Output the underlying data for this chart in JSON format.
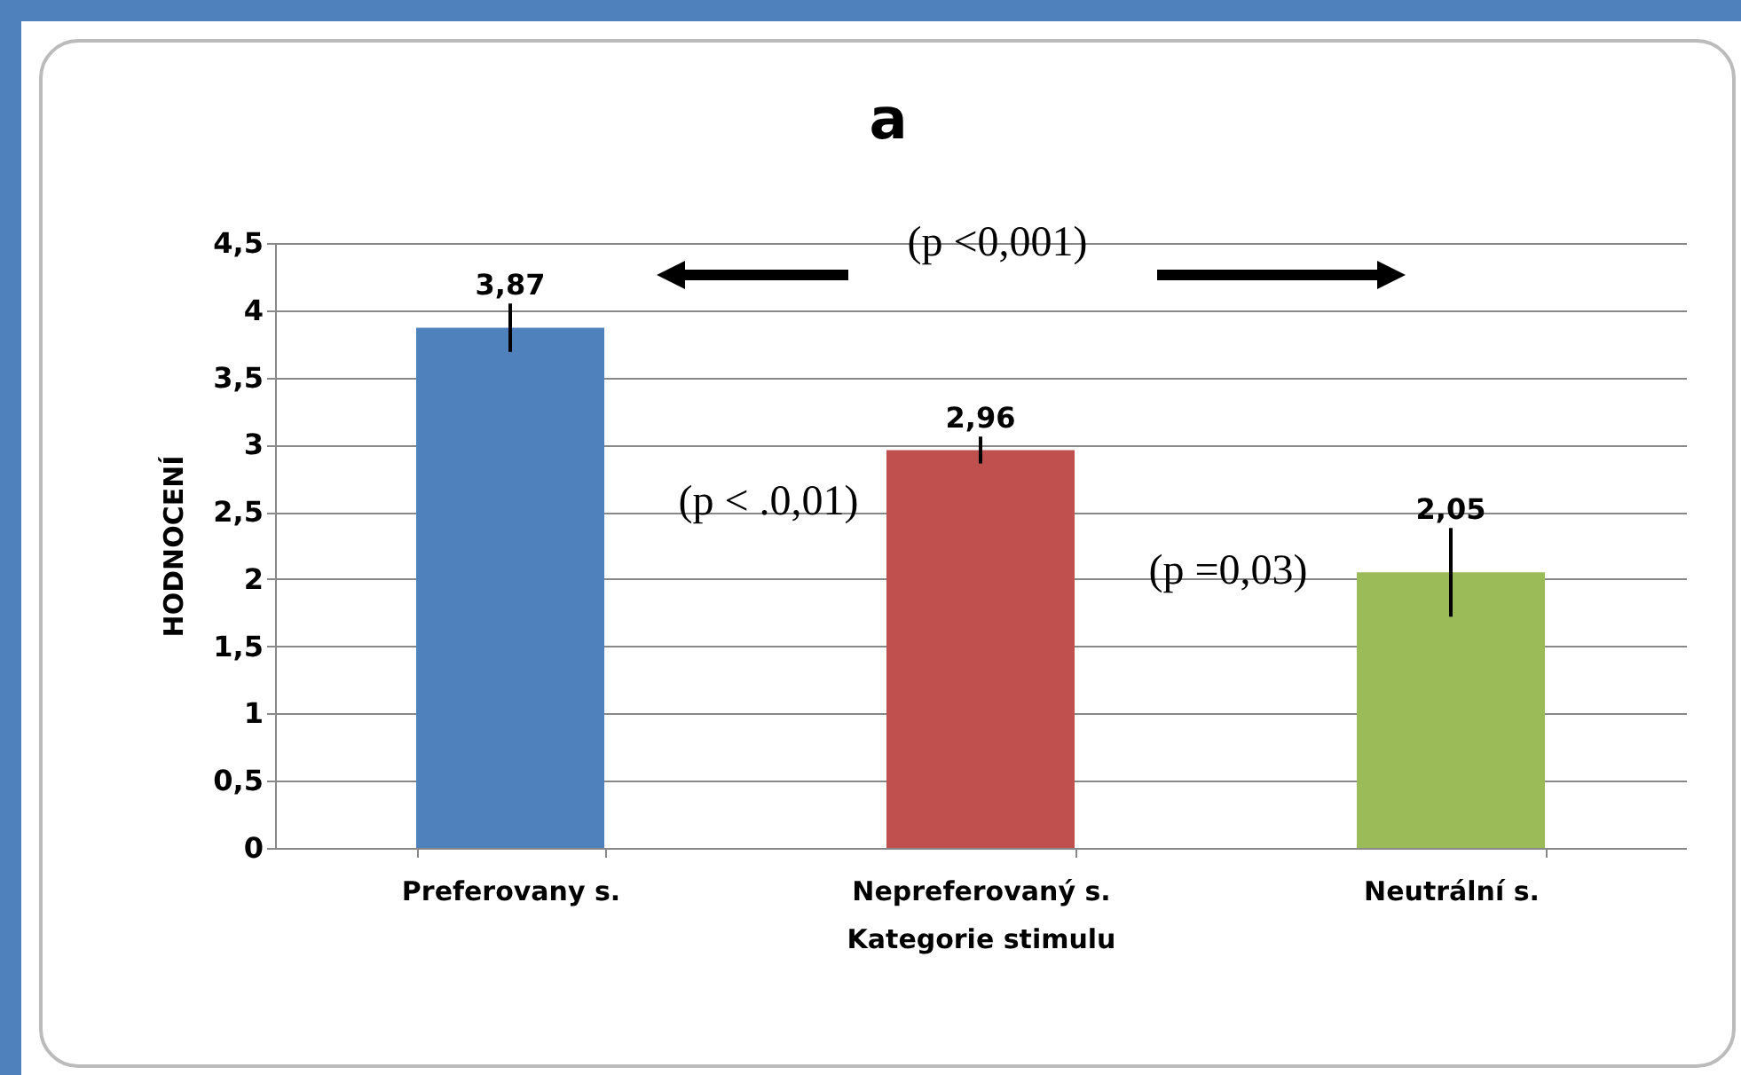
{
  "chart_data": {
    "type": "bar",
    "title": "a",
    "xlabel": "Kategorie stimulu",
    "ylabel": "HODNOCENÍ",
    "categories": [
      "Preferovany s.",
      "Nepreferovaný s.",
      "Neutrální s."
    ],
    "values": [
      3.87,
      2.96,
      2.05
    ],
    "colors": [
      "#4f81bd",
      "#c0504d",
      "#9bbb59"
    ],
    "errors": [
      0.18,
      0.1,
      0.33
    ],
    "value_labels": [
      "3,87",
      "2,96",
      "2,05"
    ],
    "ylim": [
      0,
      4.5
    ],
    "yticks": [
      {
        "value": 0,
        "label": "0"
      },
      {
        "value": 0.5,
        "label": "0,5"
      },
      {
        "value": 1,
        "label": "1"
      },
      {
        "value": 1.5,
        "label": "1,5"
      },
      {
        "value": 2,
        "label": "2"
      },
      {
        "value": 2.5,
        "label": "2,5"
      },
      {
        "value": 3,
        "label": "3"
      },
      {
        "value": 3.5,
        "label": "3,5"
      },
      {
        "value": 4,
        "label": "4"
      },
      {
        "value": 4.5,
        "label": "4,5"
      }
    ],
    "grid": "y",
    "annotations": [
      "(p <0,001)",
      "(p < .0,01)",
      "(p =0,03)"
    ]
  }
}
